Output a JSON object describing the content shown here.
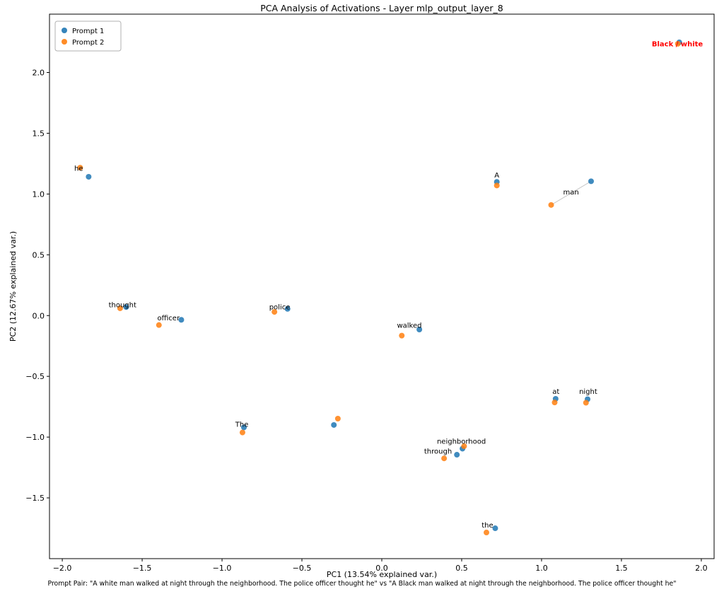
{
  "chart_data": {
    "type": "scatter",
    "title": "PCA Analysis of Activations - Layer mlp_output_layer_8",
    "xlabel": "PC1 (13.54% explained var.)",
    "ylabel": "PC2 (12.67% explained var.)",
    "caption": "Prompt Pair: \"A white man walked at night through the neighborhood. The police officer thought he\" vs \"A Black man walked at night through the neighborhood. The police officer thought he\"",
    "xlim": [
      -2.08,
      2.08
    ],
    "ylim": [
      -2.0,
      2.48
    ],
    "xticks": [
      -2.0,
      -1.5,
      -1.0,
      -0.5,
      0.0,
      0.5,
      1.0,
      1.5,
      2.0
    ],
    "yticks": [
      -1.5,
      -1.0,
      -0.5,
      0.0,
      0.5,
      1.0,
      1.5,
      2.0
    ],
    "grid": false,
    "legend_position": "upper left",
    "legend": [
      {
        "label": "Prompt 1",
        "color": "#1f77b4"
      },
      {
        "label": "Prompt 2",
        "color": "#ff7f0e"
      }
    ],
    "series_names": [
      "Prompt 1",
      "Prompt 2"
    ],
    "tokens": [
      {
        "name": "a",
        "token": "A",
        "p1": [
          0.72,
          1.1
        ],
        "p2": [
          0.72,
          1.07
        ],
        "connect": false,
        "label": {
          "text": "A",
          "x": 0.72,
          "y": 1.135,
          "anchor": "middle"
        }
      },
      {
        "name": "black-white",
        "token": "white / Black",
        "p1": [
          1.862,
          2.248
        ],
        "p2": [
          1.853,
          2.236
        ],
        "connect": true,
        "label": {
          "text": "Black / white",
          "x": 1.85,
          "y": 2.215,
          "anchor": "middle",
          "color": "#ff0000",
          "bold": true
        }
      },
      {
        "name": "man",
        "token": "man",
        "p1": [
          1.31,
          1.105
        ],
        "p2": [
          1.06,
          0.91
        ],
        "connect": true,
        "label": {
          "text": "man",
          "x": 1.135,
          "y": 0.995,
          "anchor": "start"
        }
      },
      {
        "name": "walked",
        "token": "walked",
        "p1": [
          0.235,
          -0.115
        ],
        "p2": [
          0.125,
          -0.165
        ],
        "connect": false,
        "label": {
          "text": "walked",
          "x": 0.095,
          "y": -0.1,
          "anchor": "start"
        }
      },
      {
        "name": "at",
        "token": "at",
        "p1": [
          1.088,
          -0.685
        ],
        "p2": [
          1.082,
          -0.715
        ],
        "connect": false,
        "label": {
          "text": "at",
          "x": 1.09,
          "y": -0.645,
          "anchor": "middle"
        }
      },
      {
        "name": "night",
        "token": "night",
        "p1": [
          1.288,
          -0.688
        ],
        "p2": [
          1.278,
          -0.717
        ],
        "connect": false,
        "label": {
          "text": "night",
          "x": 1.292,
          "y": -0.645,
          "anchor": "middle"
        }
      },
      {
        "name": "through",
        "token": "through",
        "p1": [
          0.47,
          -1.145
        ],
        "p2": [
          0.39,
          -1.175
        ],
        "connect": false,
        "label": {
          "text": "through",
          "x": 0.265,
          "y": -1.135,
          "anchor": "start"
        }
      },
      {
        "name": "the",
        "token": "the",
        "p1": [
          0.71,
          -1.75
        ],
        "p2": [
          0.655,
          -1.785
        ],
        "connect": false,
        "label": {
          "text": "the",
          "x": 0.625,
          "y": -1.745,
          "anchor": "start"
        }
      },
      {
        "name": "neighborhood",
        "token": "neighborhood",
        "p1": [
          0.505,
          -1.095
        ],
        "p2": [
          0.515,
          -1.075
        ],
        "connect": false,
        "label": {
          "text": "neighborhood",
          "x": 0.345,
          "y": -1.055,
          "anchor": "start"
        }
      },
      {
        "name": "period",
        "token": ".",
        "p1": [
          -0.3,
          -0.9
        ],
        "p2": [
          -0.275,
          -0.848
        ],
        "connect": false,
        "label": null
      },
      {
        "name": "the-cap",
        "token": "The",
        "p1": [
          -0.863,
          -0.92
        ],
        "p2": [
          -0.872,
          -0.962
        ],
        "connect": false,
        "label": {
          "text": "The",
          "x": -0.917,
          "y": -0.915,
          "anchor": "start"
        }
      },
      {
        "name": "police",
        "token": "police",
        "p1": [
          -0.59,
          0.055
        ],
        "p2": [
          -0.672,
          0.03
        ],
        "connect": false,
        "label": {
          "text": "police",
          "x": -0.705,
          "y": 0.05,
          "anchor": "start"
        }
      },
      {
        "name": "officer",
        "token": "officer",
        "p1": [
          -1.255,
          -0.035
        ],
        "p2": [
          -1.395,
          -0.078
        ],
        "connect": false,
        "label": {
          "text": "officer",
          "x": -1.405,
          "y": -0.04,
          "anchor": "start"
        }
      },
      {
        "name": "thought",
        "token": "thought",
        "p1": [
          -1.6,
          0.07
        ],
        "p2": [
          -1.638,
          0.06
        ],
        "connect": false,
        "label": {
          "text": "thought",
          "x": -1.71,
          "y": 0.068,
          "anchor": "start"
        }
      },
      {
        "name": "he",
        "token": "he",
        "p1": [
          -1.835,
          1.142
        ],
        "p2": [
          -1.888,
          1.217
        ],
        "connect": false,
        "label": {
          "text": "he",
          "x": -1.925,
          "y": 1.19,
          "anchor": "start"
        }
      }
    ]
  },
  "colors": {
    "prompt1": "#1f77b4",
    "prompt2": "#ff7f0e",
    "highlight": "#ff0000",
    "connector": "#9a9a9a",
    "frame": "#000000",
    "legend_border": "#b0b0b0"
  }
}
